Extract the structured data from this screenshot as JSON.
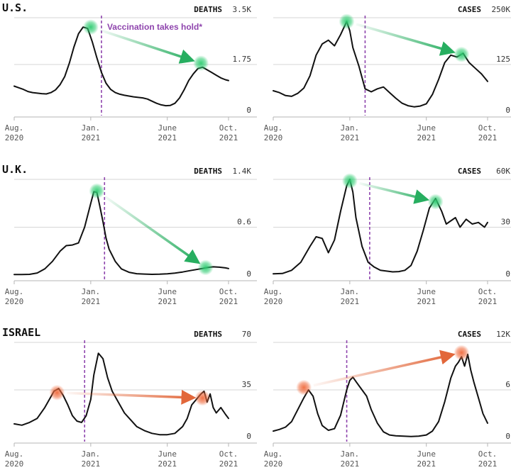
{
  "colors": {
    "vaccine": "#8e44ad",
    "improve": "#27ae60",
    "worse": "#e2673a",
    "line": "#111111"
  },
  "annotation": "Vaccination takes hold*",
  "chart_data": [
    {
      "type": "line",
      "id": "us-deaths",
      "country": "U.S.",
      "metric": "DEATHS",
      "ylim": [
        0,
        3500
      ],
      "ytick_labels": [
        "3.5K",
        "1.75",
        "0"
      ],
      "x_tick_labels": [
        [
          "Aug.",
          "2020"
        ],
        [
          "Jan.",
          "2021"
        ],
        [
          "June",
          "2021"
        ],
        [
          "Oct.",
          "2021"
        ]
      ],
      "x": [
        0,
        0.3,
        0.6,
        0.9,
        1.2,
        1.5,
        1.8,
        2.1,
        2.4,
        2.7,
        3.0,
        3.3,
        3.6,
        3.9,
        4.2,
        4.5,
        4.8,
        5.1,
        5.4,
        5.7,
        6.0,
        6.3,
        6.6,
        6.9,
        7.2,
        7.5,
        7.8,
        8.1,
        8.4,
        8.7,
        9.0,
        9.3,
        9.6,
        9.9,
        10.2,
        10.5,
        10.8,
        11.1,
        11.4,
        11.7,
        12.0,
        12.3,
        12.6,
        12.9,
        13.2,
        13.5,
        13.8,
        14.0
      ],
      "values": [
        940,
        880,
        820,
        740,
        700,
        680,
        660,
        650,
        700,
        800,
        1000,
        1300,
        1800,
        2400,
        2900,
        3150,
        3100,
        2600,
        2000,
        1450,
        1050,
        820,
        700,
        640,
        600,
        570,
        540,
        520,
        500,
        460,
        380,
        300,
        240,
        210,
        220,
        300,
        500,
        800,
        1150,
        1400,
        1600,
        1650,
        1550,
        1450,
        1350,
        1250,
        1180,
        1150
      ],
      "vaccine_x": 5.7,
      "arrow": {
        "from": [
          5.0,
          3150
        ],
        "to": [
          12.2,
          1800
        ]
      },
      "arrow_color": "improve",
      "annotation": true
    },
    {
      "type": "line",
      "id": "us-cases",
      "country": "",
      "metric": "CASES",
      "ylim": [
        0,
        250000
      ],
      "ytick_labels": [
        "250K",
        "125",
        "0"
      ],
      "x_tick_labels": [
        [
          "Aug.",
          "2020"
        ],
        [
          "Jan.",
          "2021"
        ],
        [
          "June",
          "2021"
        ],
        [
          "Oct.",
          "2021"
        ]
      ],
      "x": [
        0,
        0.4,
        0.8,
        1.2,
        1.6,
        2.0,
        2.4,
        2.8,
        3.2,
        3.6,
        4.0,
        4.4,
        4.8,
        5.0,
        5.2,
        5.6,
        6.0,
        6.4,
        6.8,
        7.2,
        7.6,
        8.0,
        8.4,
        8.8,
        9.2,
        9.6,
        10.0,
        10.4,
        10.8,
        11.2,
        11.6,
        12.0,
        12.4,
        12.8,
        13.2,
        13.6,
        14.0
      ],
      "values": [
        55000,
        50000,
        42000,
        40000,
        48000,
        62000,
        95000,
        150000,
        180000,
        190000,
        175000,
        205000,
        240000,
        215000,
        170000,
        120000,
        60000,
        52000,
        60000,
        65000,
        50000,
        35000,
        22000,
        15000,
        12000,
        14000,
        20000,
        45000,
        85000,
        130000,
        150000,
        145000,
        155000,
        130000,
        115000,
        100000,
        80000
      ],
      "vaccine_x": 6.0,
      "arrow": {
        "from": [
          4.8,
          240000
        ],
        "to": [
          12.3,
          152000
        ]
      },
      "arrow_color": "improve"
    },
    {
      "type": "line",
      "id": "uk-deaths",
      "country": "U.K.",
      "metric": "DEATHS",
      "ylim": [
        0,
        1400
      ],
      "ytick_labels": [
        "1.4K",
        "0.6",
        "0"
      ],
      "x_tick_labels": [
        [
          "Aug.",
          "2020"
        ],
        [
          "Jan.",
          "2021"
        ],
        [
          "June",
          "2021"
        ],
        [
          "Oct.",
          "2021"
        ]
      ],
      "x": [
        0,
        0.5,
        1.0,
        1.5,
        2.0,
        2.5,
        3.0,
        3.4,
        3.8,
        4.2,
        4.6,
        5.0,
        5.2,
        5.4,
        5.6,
        5.8,
        6.0,
        6.2,
        6.6,
        7.0,
        7.5,
        8.0,
        8.5,
        9.0,
        9.5,
        10.0,
        10.5,
        11.0,
        11.5,
        12.0,
        12.3,
        12.6,
        13.0,
        13.4,
        13.8,
        14.0
      ],
      "values": [
        8,
        8,
        10,
        30,
        90,
        200,
        350,
        430,
        440,
        470,
        700,
        1050,
        1220,
        1210,
        1000,
        780,
        540,
        380,
        200,
        90,
        40,
        20,
        15,
        10,
        12,
        18,
        28,
        45,
        65,
        85,
        95,
        110,
        120,
        115,
        105,
        95
      ],
      "vaccine_x": 5.9,
      "arrow": {
        "from": [
          5.4,
          1230
        ],
        "to": [
          12.5,
          110
        ]
      },
      "arrow_color": "improve"
    },
    {
      "type": "line",
      "id": "uk-cases",
      "country": "",
      "metric": "CASES",
      "ylim": [
        0,
        60000
      ],
      "ytick_labels": [
        "60K",
        "30",
        "0"
      ],
      "x_tick_labels": [
        [
          "Aug.",
          "2020"
        ],
        [
          "Jan.",
          "2021"
        ],
        [
          "June",
          "2021"
        ],
        [
          "Oct.",
          "2021"
        ]
      ],
      "x": [
        0,
        0.6,
        1.2,
        1.8,
        2.4,
        2.8,
        3.2,
        3.6,
        4.0,
        4.4,
        4.8,
        5.0,
        5.2,
        5.4,
        5.8,
        6.2,
        6.6,
        7.0,
        7.4,
        7.8,
        8.2,
        8.6,
        9.0,
        9.4,
        9.8,
        10.2,
        10.6,
        11.0,
        11.3,
        11.6,
        11.9,
        12.2,
        12.6,
        13.0,
        13.4,
        13.8,
        14.0
      ],
      "values": [
        800,
        1000,
        3000,
        8000,
        18000,
        24000,
        23000,
        14000,
        22000,
        40000,
        56000,
        60000,
        52000,
        36000,
        18000,
        8000,
        5000,
        3000,
        2500,
        2000,
        2200,
        3000,
        6000,
        15000,
        28000,
        42000,
        48000,
        40000,
        32000,
        34000,
        36000,
        30000,
        35000,
        32000,
        33000,
        30000,
        33000
      ],
      "vaccine_x": 6.3,
      "arrow": {
        "from": [
          5.0,
          59000
        ],
        "to": [
          10.6,
          46000
        ]
      },
      "arrow_color": "improve"
    },
    {
      "type": "line",
      "id": "israel-deaths",
      "country": "ISRAEL",
      "metric": "DEATHS",
      "ylim": [
        0,
        70
      ],
      "ytick_labels": [
        "70",
        "35",
        "0"
      ],
      "x_tick_labels": [
        [
          "Aug.",
          "2020"
        ],
        [
          "Jan.",
          "2021"
        ],
        [
          "June",
          "2021"
        ],
        [
          "Oct.",
          "2021"
        ]
      ],
      "x": [
        0,
        0.5,
        1.0,
        1.5,
        2.0,
        2.3,
        2.6,
        2.9,
        3.2,
        3.5,
        3.8,
        4.1,
        4.4,
        4.7,
        5.0,
        5.2,
        5.5,
        5.8,
        6.1,
        6.4,
        6.8,
        7.2,
        7.6,
        8.0,
        8.5,
        9.0,
        9.5,
        10.0,
        10.5,
        11.0,
        11.3,
        11.6,
        11.9,
        12.2,
        12.4,
        12.6,
        12.8,
        13.0,
        13.2,
        13.5,
        13.8,
        14.0
      ],
      "values": [
        10,
        9,
        11,
        14,
        22,
        28,
        34,
        36,
        31,
        24,
        16,
        12,
        11,
        16,
        28,
        46,
        62,
        58,
        44,
        34,
        26,
        18,
        13,
        8,
        5,
        3,
        2,
        2,
        3,
        8,
        14,
        24,
        28,
        32,
        34,
        26,
        32,
        22,
        18,
        22,
        17,
        14
      ],
      "vaccine_x": 4.6,
      "arrow": {
        "from": [
          2.8,
          33
        ],
        "to": [
          12.3,
          29
        ]
      },
      "arrow_color": "worse"
    },
    {
      "type": "line",
      "id": "israel-cases",
      "country": "",
      "metric": "CASES",
      "ylim": [
        0,
        12000
      ],
      "ytick_labels": [
        "12K",
        "6",
        "0"
      ],
      "x_tick_labels": [
        [
          "Aug.",
          "2020"
        ],
        [
          "Jan.",
          "2021"
        ],
        [
          "June",
          "2021"
        ],
        [
          "Oct.",
          "2021"
        ]
      ],
      "x": [
        0,
        0.4,
        0.8,
        1.2,
        1.6,
        2.0,
        2.3,
        2.6,
        2.9,
        3.2,
        3.6,
        4.0,
        4.4,
        4.8,
        5.0,
        5.2,
        5.5,
        5.8,
        6.1,
        6.4,
        6.8,
        7.2,
        7.6,
        8.0,
        8.5,
        9.0,
        9.5,
        10.0,
        10.4,
        10.8,
        11.2,
        11.6,
        11.9,
        12.1,
        12.3,
        12.5,
        12.7,
        12.9,
        13.1,
        13.4,
        13.7,
        14.0
      ],
      "values": [
        800,
        1000,
        1300,
        2000,
        3500,
        5000,
        6000,
        5200,
        3000,
        1500,
        900,
        1100,
        2800,
        6000,
        7200,
        7600,
        6800,
        6000,
        5200,
        3500,
        1800,
        700,
        300,
        200,
        150,
        120,
        150,
        300,
        800,
        2000,
        4500,
        7500,
        9000,
        9500,
        10200,
        9000,
        10500,
        8500,
        7000,
        5000,
        3000,
        1800
      ],
      "vaccine_x": 4.8,
      "arrow": {
        "from": [
          2.0,
          6300
        ],
        "to": [
          12.3,
          10700
        ]
      },
      "arrow_color": "worse"
    }
  ]
}
